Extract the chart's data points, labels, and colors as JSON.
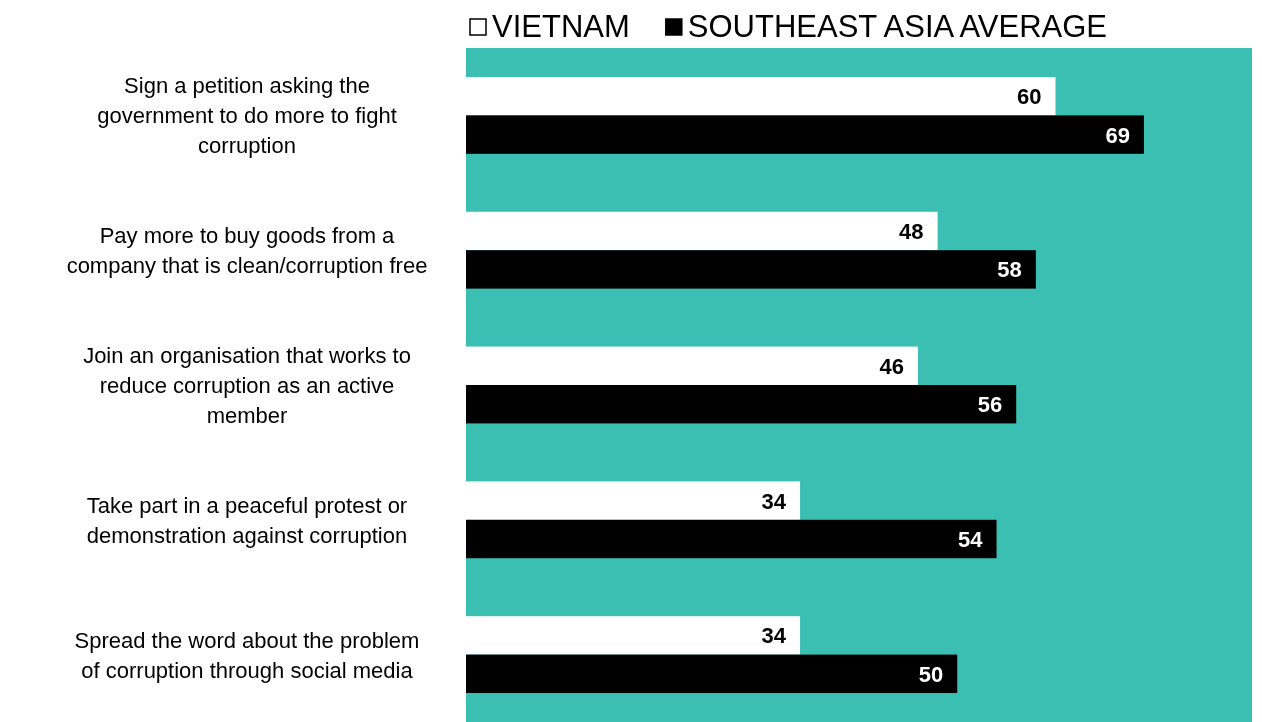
{
  "chart_data": {
    "type": "bar",
    "orientation": "horizontal",
    "categories": [
      "Sign a petition asking the government to do more to fight corruption",
      "Pay more to buy goods from a company that is clean/corruption free",
      "Join an organisation that works to reduce corruption as an active member",
      "Take part in a peaceful protest or demonstration against corruption",
      "Spread the word about the problem of corruption through social media"
    ],
    "series": [
      {
        "name": "VIETNAM",
        "color": "#ffffff",
        "values": [
          60,
          48,
          46,
          34,
          34
        ]
      },
      {
        "name": "SOUTHEAST ASIA AVERAGE",
        "color": "#000000",
        "values": [
          69,
          58,
          56,
          54,
          50
        ]
      }
    ],
    "xlim": [
      0,
      80
    ],
    "data_labels": true,
    "legend": "top",
    "tick_labels": "y"
  }
}
